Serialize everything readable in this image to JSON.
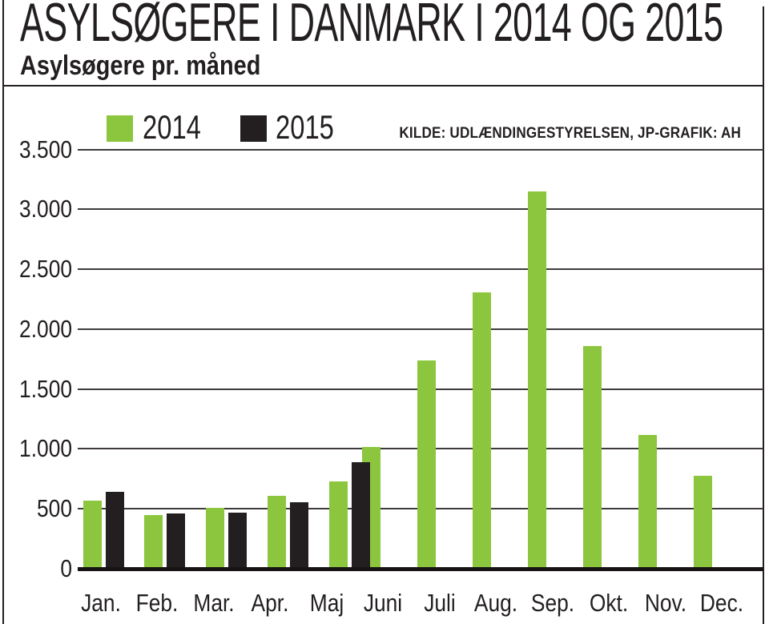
{
  "header": {
    "title": "ASYLSØGERE I DANMARK I 2014 OG 2015"
  },
  "source": "KILDE: UDLÆNDINGESTYRELSEN, JP-GRAFIK: AH",
  "legend": [
    {
      "label": "2014",
      "color": "#8cc63e"
    },
    {
      "label": "2015",
      "color": "#231f20"
    }
  ],
  "chart_data": {
    "type": "bar",
    "title": "Asylsøgere pr. måned",
    "categories": [
      "Jan.",
      "Feb.",
      "Mar.",
      "Apr.",
      "Maj",
      "Juni",
      "Juli",
      "Aug.",
      "Sep.",
      "Okt.",
      "Nov.",
      "Dec."
    ],
    "series": [
      {
        "name": "2014",
        "color": "#8cc63e",
        "values": [
          570,
          450,
          510,
          610,
          730,
          1015,
          1740,
          2305,
          3150,
          1860,
          1115,
          775
        ]
      },
      {
        "name": "2015",
        "color": "#231f20",
        "values": [
          645,
          460,
          470,
          555,
          890,
          null,
          null,
          null,
          null,
          null,
          null,
          null
        ]
      }
    ],
    "xlabel": "",
    "ylabel": "",
    "yticks": [
      "0",
      "500",
      "1.000",
      "1.500",
      "2.000",
      "2.500",
      "3.000",
      "3.500"
    ],
    "ytick_values": [
      0,
      500,
      1000,
      1500,
      2000,
      2500,
      3000,
      3500
    ],
    "ylim": [
      0,
      3500
    ],
    "grid": true,
    "legend_position": "top-left"
  }
}
